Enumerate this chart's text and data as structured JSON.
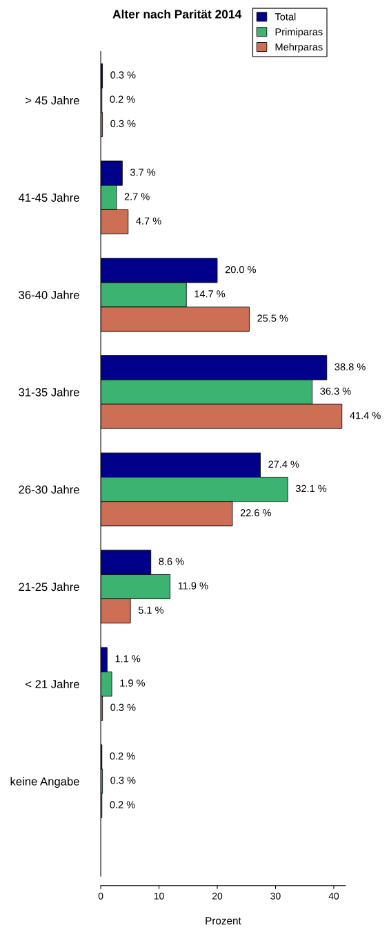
{
  "chart_data": {
    "type": "bar",
    "orientation": "horizontal",
    "title": "Alter nach Parität 2014",
    "xlabel": "Prozent",
    "categories": [
      "> 45 Jahre",
      "41-45 Jahre",
      "36-40 Jahre",
      "31-35 Jahre",
      "26-30 Jahre",
      "21-25 Jahre",
      "< 21 Jahre",
      "keine Angabe"
    ],
    "series": [
      {
        "name": "Total",
        "color": "#00008b",
        "values": [
          0.3,
          3.7,
          20.0,
          38.8,
          27.4,
          8.6,
          1.1,
          0.2
        ],
        "value_labels": [
          "0.3 %",
          "3.7 %",
          "20.0 %",
          "38.8 %",
          "27.4 %",
          "8.6 %",
          "1.1 %",
          "0.2 %"
        ]
      },
      {
        "name": "Primiparas",
        "color": "#3cb371",
        "values": [
          0.2,
          2.7,
          14.7,
          36.3,
          32.1,
          11.9,
          1.9,
          0.3
        ],
        "value_labels": [
          "0.2 %",
          "2.7 %",
          "14.7 %",
          "36.3 %",
          "32.1 %",
          "11.9 %",
          "1.9 %",
          "0.3 %"
        ]
      },
      {
        "name": "Mehrparas",
        "color": "#cd6f55",
        "values": [
          0.3,
          4.7,
          25.5,
          41.4,
          22.6,
          5.1,
          0.3,
          0.2
        ],
        "value_labels": [
          "0.3 %",
          "4.7 %",
          "25.5 %",
          "41.4 %",
          "22.6 %",
          "5.1 %",
          "0.3 %",
          "0.2 %"
        ]
      }
    ],
    "xlim": [
      0,
      42
    ],
    "xticks": [
      0,
      10,
      20,
      30,
      40
    ],
    "grid": false,
    "legend": "top right"
  }
}
